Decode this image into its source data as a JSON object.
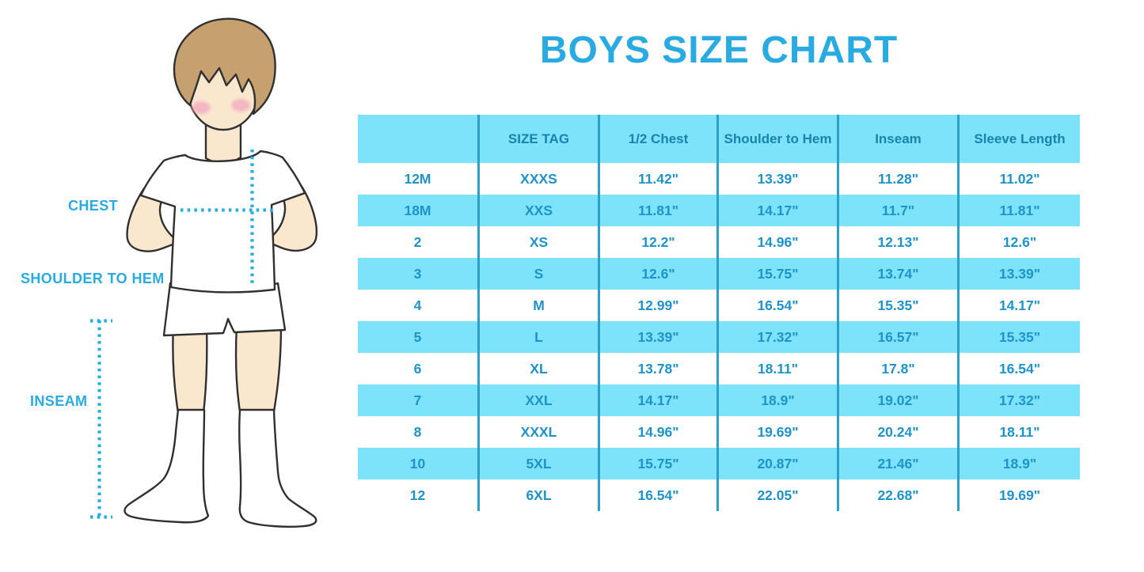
{
  "title": "BOYS SIZE CHART",
  "figure": {
    "description": "outline illustration of a boy in white t-shirt, shorts and knee socks with dotted measurement guides",
    "labels": {
      "chest": "CHEST",
      "shoulder_to_hem": "SHOULDER TO HEM",
      "inseam": "INSEAM"
    }
  },
  "chart_data": {
    "type": "table",
    "title": "BOYS SIZE CHART",
    "columns": [
      "",
      "SIZE TAG",
      "1/2 Chest",
      "Shoulder to Hem",
      "Inseam",
      "Sleeve Length"
    ],
    "rows": [
      [
        "12M",
        "XXXS",
        "11.42\"",
        "13.39\"",
        "11.28\"",
        "11.02\""
      ],
      [
        "18M",
        "XXS",
        "11.81\"",
        "14.17\"",
        "11.7\"",
        "11.81\""
      ],
      [
        "2",
        "XS",
        "12.2\"",
        "14.96\"",
        "12.13\"",
        "12.6\""
      ],
      [
        "3",
        "S",
        "12.6\"",
        "15.75\"",
        "13.74\"",
        "13.39\""
      ],
      [
        "4",
        "M",
        "12.99\"",
        "16.54\"",
        "15.35\"",
        "14.17\""
      ],
      [
        "5",
        "L",
        "13.39\"",
        "17.32\"",
        "16.57\"",
        "15.35\""
      ],
      [
        "6",
        "XL",
        "13.78\"",
        "18.11\"",
        "17.8\"",
        "16.54\""
      ],
      [
        "7",
        "XXL",
        "14.17\"",
        "18.9\"",
        "19.02\"",
        "17.32\""
      ],
      [
        "8",
        "XXXL",
        "14.96\"",
        "19.69\"",
        "20.24\"",
        "18.11\""
      ],
      [
        "10",
        "5XL",
        "15.75\"",
        "20.87\"",
        "21.46\"",
        "18.9\""
      ],
      [
        "12",
        "6XL",
        "16.54\"",
        "22.05\"",
        "22.68\"",
        "19.69\""
      ]
    ],
    "layout": {
      "header_background": "#7DE3FB",
      "alternate_row_background": "#7DE3FB",
      "grid": "vertical column separators only"
    }
  },
  "colors": {
    "accent_blue": "#29ABE2",
    "stripe_cyan": "#7DE3FB",
    "grid_line_blue": "#2D9FC9",
    "header_text_blue": "#1A82AE",
    "cell_text_blue": "#1F93C8",
    "hair_brown": "#C6A06F",
    "skin": "#FAE8CE",
    "cheek_pink": "#F2A9BE",
    "outline": "#303030"
  }
}
